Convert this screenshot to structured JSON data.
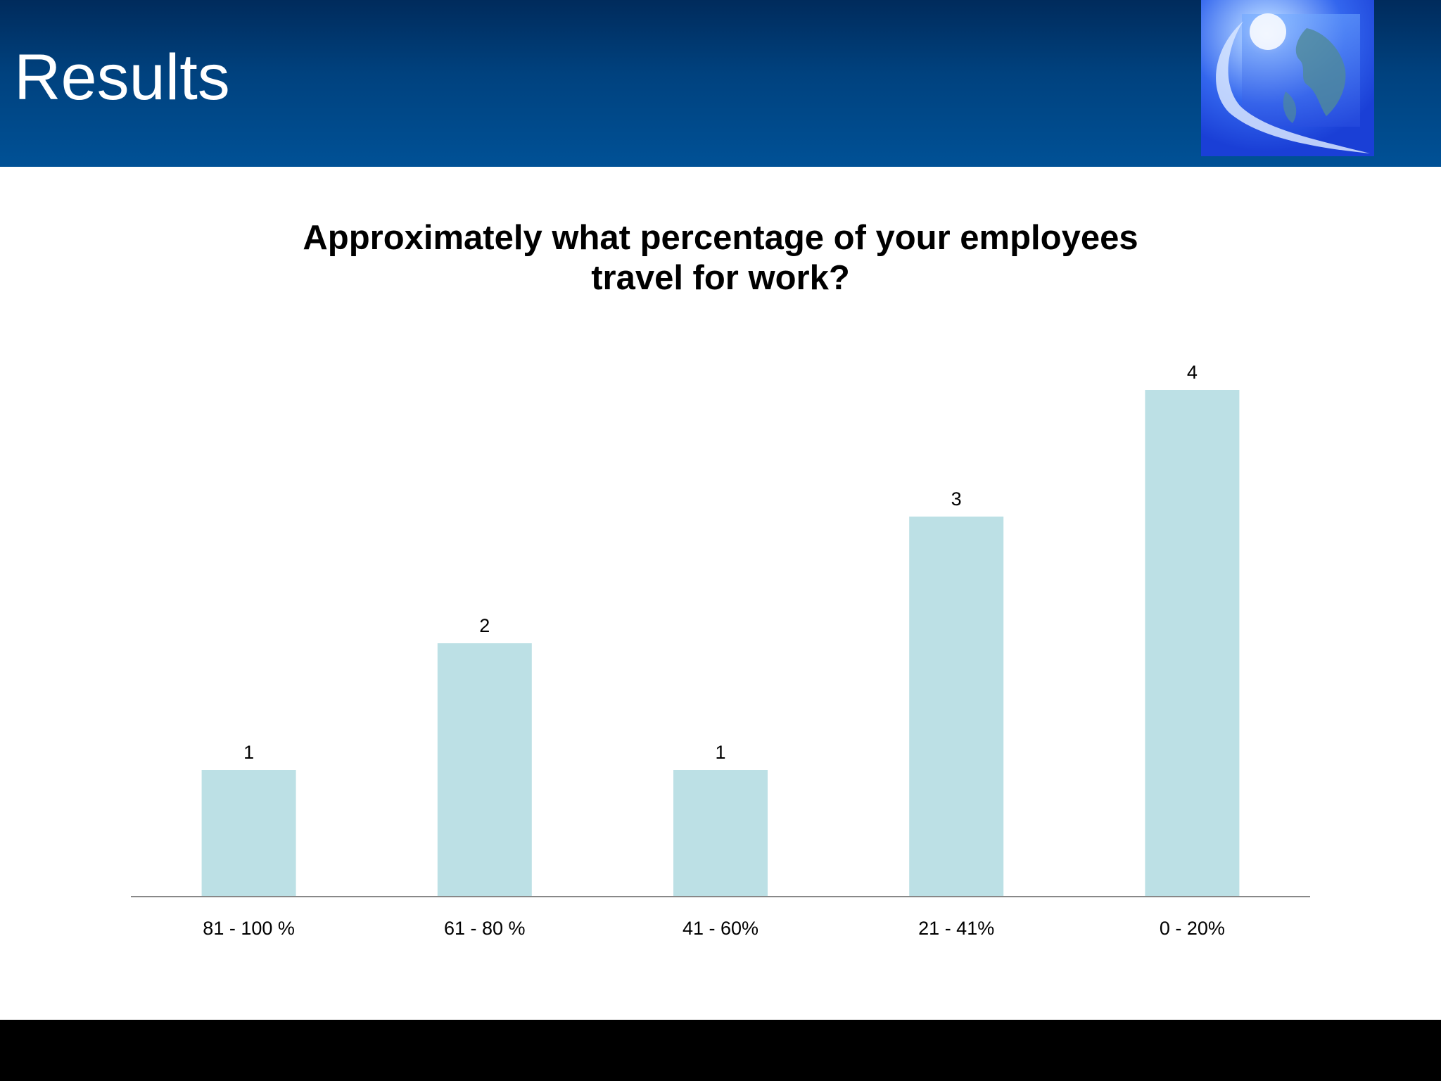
{
  "header": {
    "title": "Results"
  },
  "colors": {
    "header_dark": "#002b5c",
    "header_light": "#005196",
    "bar_fill": "#bce0e5",
    "axis": "#888888",
    "footer": "#000000"
  },
  "chart_data": {
    "type": "bar",
    "title_lines": [
      "Approximately what percentage of your employees",
      "travel for work?"
    ],
    "categories": [
      "81 - 100 %",
      "61 - 80 %",
      "41 - 60%",
      "21 - 41%",
      "0 - 20%"
    ],
    "values": [
      1,
      2,
      1,
      3,
      4
    ],
    "data_labels": [
      "1",
      "2",
      "1",
      "3",
      "4"
    ],
    "ylim": [
      0,
      4
    ],
    "grid": false,
    "legend": "none",
    "xlabel": "",
    "ylabel": ""
  }
}
